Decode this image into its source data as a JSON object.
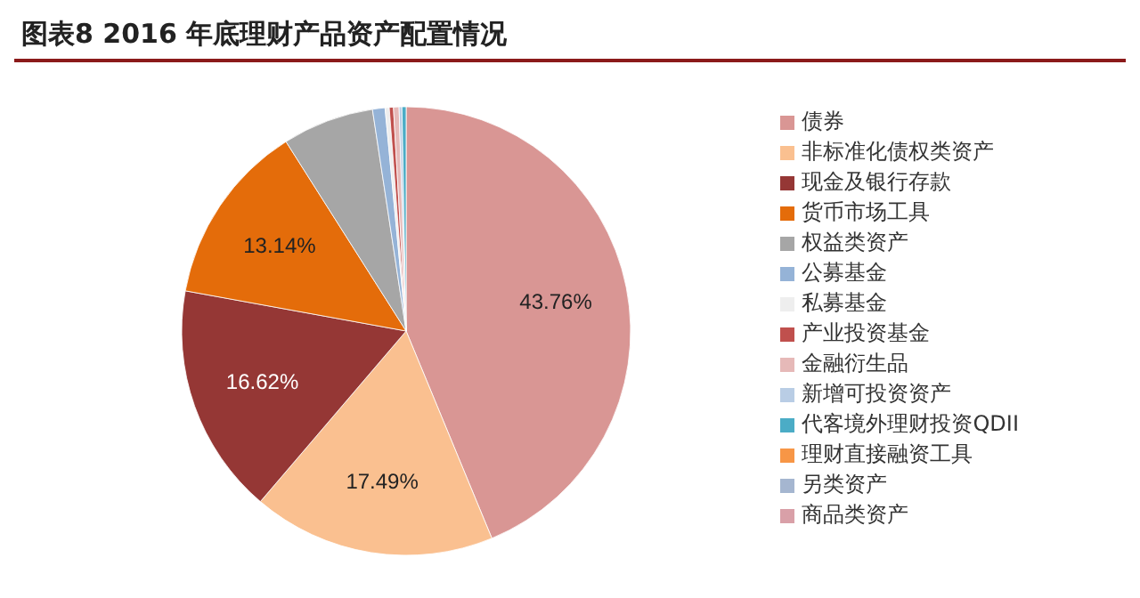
{
  "chart_data": {
    "type": "pie",
    "title": "图表8  2016 年底理财产品资产配置情况",
    "categories": [
      "债券",
      "非标准化债权类资产",
      "现金及银行存款",
      "货币市场工具",
      "权益类资产",
      "公募基金",
      "私募基金",
      "产业投资基金",
      "金融衍生品",
      "新增可投资资产",
      "代客境外理财投资QDII",
      "理财直接融资工具",
      "另类资产",
      "商品类资产"
    ],
    "values": [
      43.76,
      17.49,
      16.62,
      13.14,
      6.59,
      0.9,
      0.3,
      0.3,
      0.4,
      0.2,
      0.3,
      0,
      0,
      0
    ],
    "colors": [
      "#d99694",
      "#fac090",
      "#953735",
      "#e46c0a",
      "#a6a6a6",
      "#95b3d7",
      "#eeeeee",
      "#c0504d",
      "#e6b9b8",
      "#b9cde5",
      "#4bacc6",
      "#f79646",
      "#a5b6d0",
      "#d9a0a8"
    ],
    "value_labels": [
      "43.76%",
      "17.49%",
      "16.62%",
      "13.14%",
      null,
      null,
      null,
      null,
      null,
      null,
      null,
      null,
      null,
      null
    ],
    "legend": "right"
  }
}
